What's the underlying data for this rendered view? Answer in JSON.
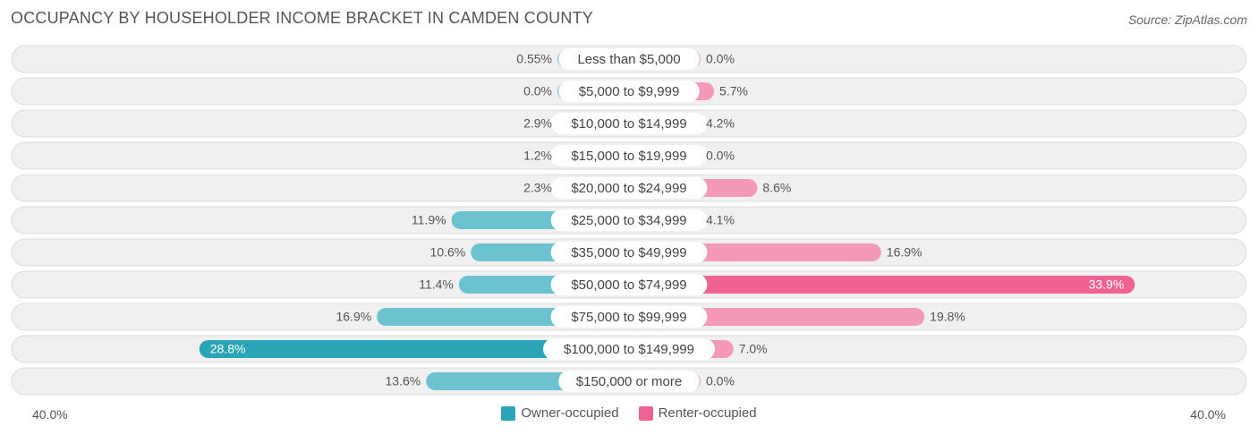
{
  "title": "OCCUPANCY BY HOUSEHOLDER INCOME BRACKET IN CAMDEN COUNTY",
  "source": "Source: ZipAtlas.com",
  "axis": {
    "left_label": "40.0%",
    "right_label": "40.0%"
  },
  "legend": {
    "owner_label": "Owner-occupied",
    "renter_label": "Renter-occupied"
  },
  "colors": {
    "owner": "#6cc3cf",
    "owner_strong": "#2aa5b8",
    "renter": "#f49ab8",
    "renter_strong": "#f06292",
    "row_bg": "#f0f0f0",
    "row_border": "#dcdcdc"
  },
  "chart_data": {
    "type": "bar",
    "orientation": "horizontal-diverging",
    "xlim": [
      -40,
      40
    ],
    "categories": [
      "Less than $5,000",
      "$5,000 to $9,999",
      "$10,000 to $14,999",
      "$15,000 to $19,999",
      "$20,000 to $24,999",
      "$25,000 to $34,999",
      "$35,000 to $49,999",
      "$50,000 to $74,999",
      "$75,000 to $99,999",
      "$100,000 to $149,999",
      "$150,000 or more"
    ],
    "series": [
      {
        "name": "Owner-occupied",
        "values": [
          0.55,
          0.0,
          2.9,
          1.2,
          2.3,
          11.9,
          10.6,
          11.4,
          16.9,
          28.8,
          13.6
        ],
        "labels": [
          "0.55%",
          "0.0%",
          "2.9%",
          "1.2%",
          "2.3%",
          "11.9%",
          "10.6%",
          "11.4%",
          "16.9%",
          "28.8%",
          "13.6%"
        ]
      },
      {
        "name": "Renter-occupied",
        "values": [
          0.0,
          5.7,
          4.2,
          0.0,
          8.6,
          4.1,
          16.9,
          33.9,
          19.8,
          7.0,
          0.0
        ],
        "labels": [
          "0.0%",
          "5.7%",
          "4.2%",
          "0.0%",
          "8.6%",
          "4.1%",
          "16.9%",
          "33.9%",
          "19.8%",
          "7.0%",
          "0.0%"
        ]
      }
    ]
  }
}
